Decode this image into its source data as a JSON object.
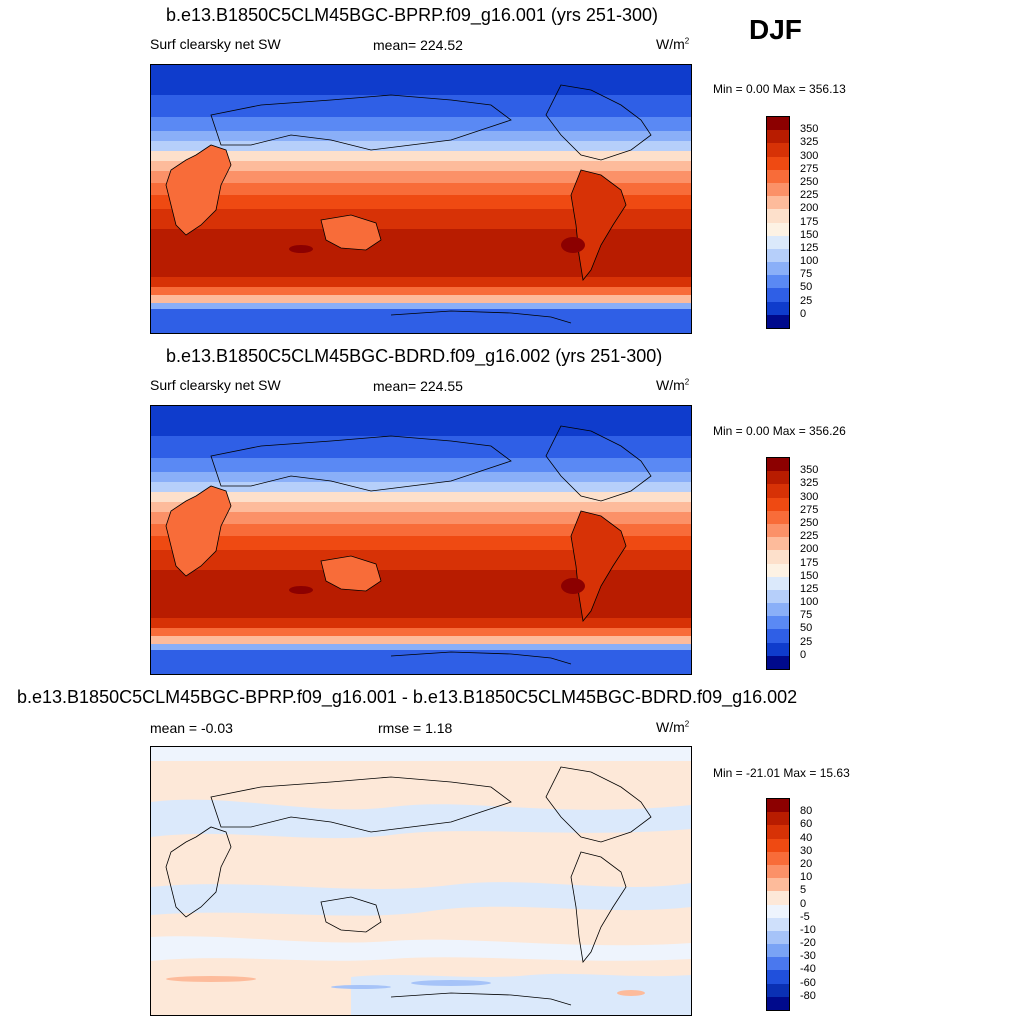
{
  "season": "DJF",
  "panels": [
    {
      "title": "b.e13.B1850C5CLM45BGC-BPRP.f09_g16.001 (yrs 251-300)",
      "left_label": "Surf clearsky net SW",
      "center_label": "mean= 224.52",
      "units_base": "W/m",
      "units_exp": "2",
      "minmax": "Min =   0.00 Max = 356.13",
      "colorbar": {
        "ticks": [
          "350",
          "325",
          "300",
          "275",
          "250",
          "225",
          "200",
          "175",
          "150",
          "125",
          "100",
          "75",
          "50",
          "25",
          "0"
        ],
        "colors": [
          "#8c0000",
          "#b81c00",
          "#d73206",
          "#ef4a12",
          "#f86c39",
          "#fb9168",
          "#fdbb9b",
          "#fde0cb",
          "#fdf2e4",
          "#dbe9fb",
          "#b6cffa",
          "#8aaff8",
          "#5a89f4",
          "#2f5fe6",
          "#0f3ccc",
          "#000a8c"
        ]
      }
    },
    {
      "title": "b.e13.B1850C5CLM45BGC-BDRD.f09_g16.002 (yrs 251-300)",
      "left_label": "Surf clearsky net SW",
      "center_label": "mean= 224.55",
      "units_base": "W/m",
      "units_exp": "2",
      "minmax": "Min =   0.00 Max = 356.26",
      "colorbar": {
        "ticks": [
          "350",
          "325",
          "300",
          "275",
          "250",
          "225",
          "200",
          "175",
          "150",
          "125",
          "100",
          "75",
          "50",
          "25",
          "0"
        ],
        "colors": [
          "#8c0000",
          "#b81c00",
          "#d73206",
          "#ef4a12",
          "#f86c39",
          "#fb9168",
          "#fdbb9b",
          "#fde0cb",
          "#fdf2e4",
          "#dbe9fb",
          "#b6cffa",
          "#8aaff8",
          "#5a89f4",
          "#2f5fe6",
          "#0f3ccc",
          "#000a8c"
        ]
      }
    },
    {
      "title": "b.e13.B1850C5CLM45BGC-BPRP.f09_g16.001 - b.e13.B1850C5CLM45BGC-BDRD.f09_g16.002",
      "left_label": "mean =  -0.03",
      "center_label": "rmse =   1.18",
      "units_base": "W/m",
      "units_exp": "2",
      "minmax": "Min = -21.01 Max =  15.63",
      "colorbar": {
        "ticks": [
          "80",
          "60",
          "40",
          "30",
          "20",
          "10",
          "5",
          "0",
          "-5",
          "-10",
          "-20",
          "-30",
          "-40",
          "-60",
          "-80"
        ],
        "colors": [
          "#8c0000",
          "#b81c00",
          "#d73206",
          "#ef4a12",
          "#f86c39",
          "#fb9168",
          "#fdbb9b",
          "#fde8d8",
          "#eef4fd",
          "#cfe0fb",
          "#a6c3f8",
          "#7aa3f5",
          "#4a78ee",
          "#2050dc",
          "#0a30b4",
          "#000a8c"
        ]
      }
    }
  ]
}
